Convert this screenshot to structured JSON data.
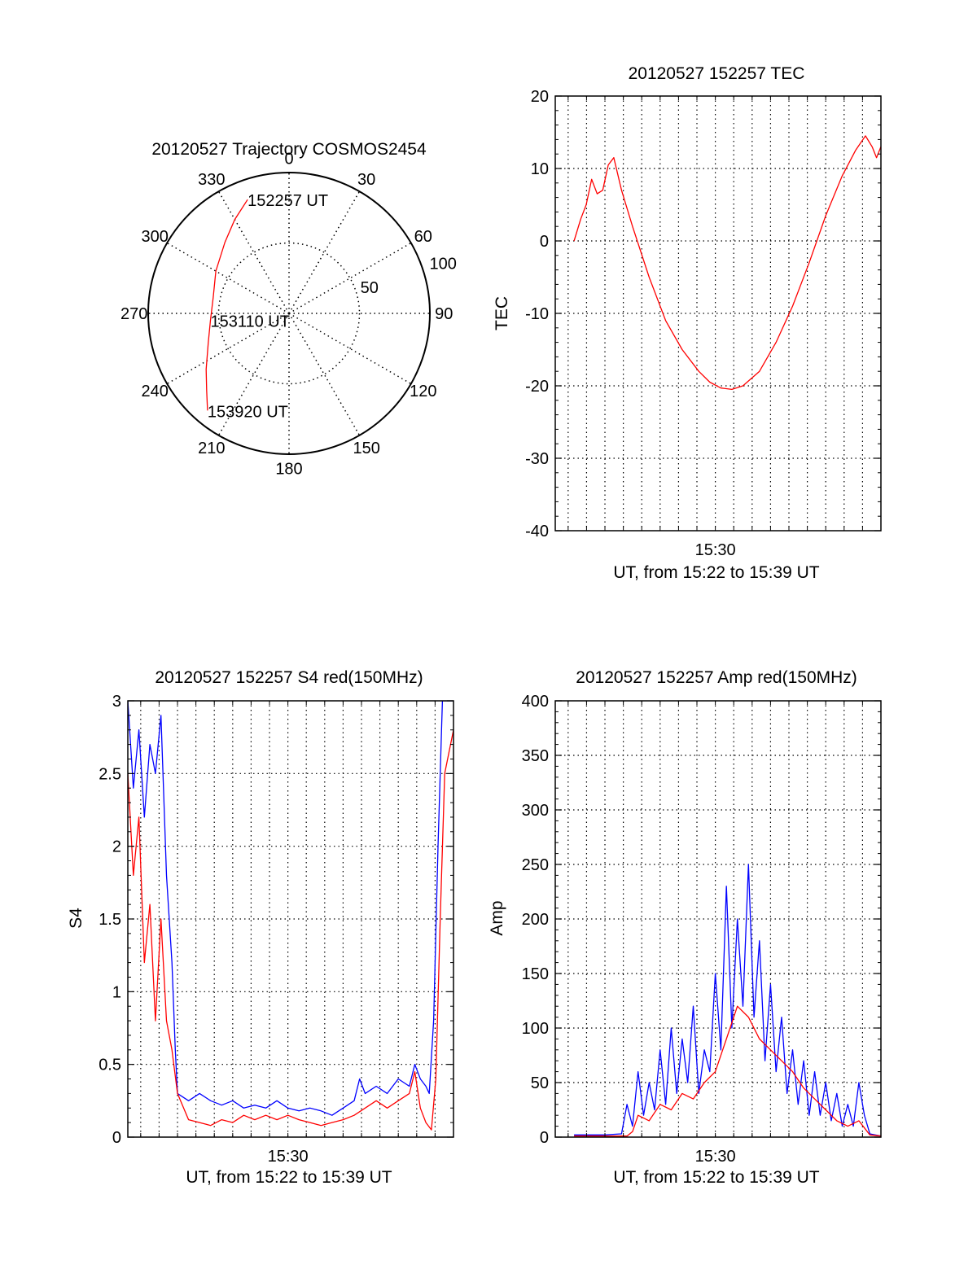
{
  "colors": {
    "red": "#ff0000",
    "blue": "#0000ff",
    "axis": "#000000",
    "grid": "#000000",
    "background": "#ffffff"
  },
  "chart_data": [
    {
      "id": "trajectory",
      "type": "polar",
      "title": "20120527 Trajectory COSMOS2454",
      "radial_max": 100,
      "radial_ticks": [
        50,
        100
      ],
      "radial_tick_labels": [
        "50",
        "100"
      ],
      "azimuth_ticks": [
        0,
        30,
        60,
        90,
        120,
        150,
        180,
        210,
        240,
        270,
        300,
        330
      ],
      "azimuth_tick_labels": [
        "0",
        "30",
        "60",
        "90",
        "120",
        "150",
        "180",
        "210",
        "240",
        "270",
        "300",
        "330"
      ],
      "grid": true,
      "series": [
        {
          "color": "red",
          "points": [
            {
              "az": 340,
              "r": 86
            },
            {
              "az": 330,
              "r": 77
            },
            {
              "az": 318,
              "r": 68
            },
            {
              "az": 300,
              "r": 60
            },
            {
              "az": 282,
              "r": 55
            },
            {
              "az": 265,
              "r": 56
            },
            {
              "az": 250,
              "r": 61
            },
            {
              "az": 236,
              "r": 71
            },
            {
              "az": 227,
              "r": 80
            },
            {
              "az": 220,
              "r": 90
            }
          ]
        }
      ],
      "annotations": [
        {
          "text": "152257 UT",
          "az": 340,
          "r": 86
        },
        {
          "text": "153110 UT",
          "az": 265,
          "r": 56
        },
        {
          "text": "153920 UT",
          "az": 220,
          "r": 90
        }
      ]
    },
    {
      "id": "tec",
      "type": "line",
      "title": "20120527 152257 TEC",
      "xlabel": "UT, from 15:22 to 15:39 UT",
      "ylabel": "TEC",
      "xlim": [
        15.355,
        15.65
      ],
      "ylim": [
        -40,
        20
      ],
      "yticks": [
        20,
        10,
        0,
        -10,
        -20,
        -30,
        -40
      ],
      "ytick_labels": [
        "20",
        "10",
        "0",
        "-10",
        "-20",
        "-30",
        "-40"
      ],
      "xticks": [
        15.5
      ],
      "xtick_labels": [
        "15:30"
      ],
      "xgrid_minutes": [
        22,
        23,
        24,
        25,
        26,
        27,
        28,
        29,
        30,
        31,
        32,
        33,
        34,
        35,
        36,
        37,
        38
      ],
      "grid": true,
      "series": [
        {
          "color": "red",
          "points": [
            [
              15.372,
              0
            ],
            [
              15.378,
              3
            ],
            [
              15.383,
              5
            ],
            [
              15.388,
              8.5
            ],
            [
              15.393,
              6.5
            ],
            [
              15.398,
              7
            ],
            [
              15.403,
              10.5
            ],
            [
              15.408,
              11.5
            ],
            [
              15.415,
              7
            ],
            [
              15.425,
              2
            ],
            [
              15.44,
              -5
            ],
            [
              15.455,
              -11
            ],
            [
              15.47,
              -15
            ],
            [
              15.485,
              -18
            ],
            [
              15.495,
              -19.5
            ],
            [
              15.505,
              -20.3
            ],
            [
              15.515,
              -20.5
            ],
            [
              15.525,
              -20
            ],
            [
              15.54,
              -18
            ],
            [
              15.555,
              -14
            ],
            [
              15.57,
              -9
            ],
            [
              15.585,
              -3
            ],
            [
              15.6,
              3.5
            ],
            [
              15.615,
              9
            ],
            [
              15.627,
              12.5
            ],
            [
              15.636,
              14.5
            ],
            [
              15.642,
              13
            ],
            [
              15.646,
              11.5
            ],
            [
              15.65,
              13
            ]
          ]
        }
      ]
    },
    {
      "id": "s4",
      "type": "line",
      "title": "20120527 152257 S4 red(150MHz)",
      "xlabel": "UT, from 15:22 to 15:39 UT",
      "ylabel": "S4",
      "xlim": [
        15.355,
        15.65
      ],
      "ylim": [
        0,
        3
      ],
      "yticks": [
        3,
        2.5,
        2,
        1.5,
        1,
        0.5,
        0
      ],
      "ytick_labels": [
        "3",
        "2.5",
        "2",
        "1.5",
        "1",
        "0.5",
        "0"
      ],
      "xticks": [
        15.5
      ],
      "xtick_labels": [
        "15:30"
      ],
      "xgrid_minutes": [
        22,
        23,
        24,
        25,
        26,
        27,
        28,
        29,
        30,
        31,
        32,
        33,
        34,
        35,
        36,
        37,
        38
      ],
      "grid": true,
      "series": [
        {
          "color": "blue",
          "points": [
            [
              15.355,
              3
            ],
            [
              15.36,
              2.4
            ],
            [
              15.365,
              2.8
            ],
            [
              15.37,
              2.2
            ],
            [
              15.375,
              2.7
            ],
            [
              15.38,
              2.5
            ],
            [
              15.385,
              2.9
            ],
            [
              15.39,
              1.8
            ],
            [
              15.395,
              1.2
            ],
            [
              15.398,
              0.6
            ],
            [
              15.4,
              0.3
            ],
            [
              15.41,
              0.25
            ],
            [
              15.42,
              0.3
            ],
            [
              15.43,
              0.25
            ],
            [
              15.44,
              0.22
            ],
            [
              15.45,
              0.25
            ],
            [
              15.46,
              0.2
            ],
            [
              15.47,
              0.22
            ],
            [
              15.48,
              0.2
            ],
            [
              15.49,
              0.25
            ],
            [
              15.5,
              0.2
            ],
            [
              15.51,
              0.18
            ],
            [
              15.52,
              0.2
            ],
            [
              15.53,
              0.18
            ],
            [
              15.54,
              0.15
            ],
            [
              15.55,
              0.2
            ],
            [
              15.56,
              0.25
            ],
            [
              15.565,
              0.4
            ],
            [
              15.57,
              0.3
            ],
            [
              15.58,
              0.35
            ],
            [
              15.59,
              0.3
            ],
            [
              15.6,
              0.4
            ],
            [
              15.61,
              0.35
            ],
            [
              15.615,
              0.5
            ],
            [
              15.62,
              0.4
            ],
            [
              15.625,
              0.35
            ],
            [
              15.628,
              0.3
            ],
            [
              15.632,
              0.8
            ],
            [
              15.636,
              2
            ],
            [
              15.64,
              3
            ],
            [
              15.65,
              3
            ]
          ]
        },
        {
          "color": "red",
          "points": [
            [
              15.355,
              2.5
            ],
            [
              15.36,
              1.8
            ],
            [
              15.365,
              2.2
            ],
            [
              15.37,
              1.2
            ],
            [
              15.375,
              1.6
            ],
            [
              15.38,
              0.8
            ],
            [
              15.385,
              1.5
            ],
            [
              15.39,
              0.8
            ],
            [
              15.395,
              0.6
            ],
            [
              15.4,
              0.3
            ],
            [
              15.41,
              0.12
            ],
            [
              15.42,
              0.1
            ],
            [
              15.43,
              0.08
            ],
            [
              15.44,
              0.12
            ],
            [
              15.45,
              0.1
            ],
            [
              15.46,
              0.15
            ],
            [
              15.47,
              0.12
            ],
            [
              15.48,
              0.15
            ],
            [
              15.49,
              0.12
            ],
            [
              15.5,
              0.15
            ],
            [
              15.51,
              0.12
            ],
            [
              15.52,
              0.1
            ],
            [
              15.53,
              0.08
            ],
            [
              15.54,
              0.1
            ],
            [
              15.55,
              0.12
            ],
            [
              15.56,
              0.15
            ],
            [
              15.57,
              0.2
            ],
            [
              15.58,
              0.25
            ],
            [
              15.59,
              0.2
            ],
            [
              15.6,
              0.25
            ],
            [
              15.61,
              0.3
            ],
            [
              15.615,
              0.45
            ],
            [
              15.62,
              0.2
            ],
            [
              15.625,
              0.1
            ],
            [
              15.63,
              0.05
            ],
            [
              15.634,
              0.4
            ],
            [
              15.638,
              1.5
            ],
            [
              15.642,
              2.5
            ],
            [
              15.65,
              2.8
            ]
          ]
        }
      ]
    },
    {
      "id": "amp",
      "type": "line",
      "title": "20120527 152257 Amp red(150MHz)",
      "xlabel": "UT, from 15:22 to 15:39 UT",
      "ylabel": "Amp",
      "xlim": [
        15.355,
        15.65
      ],
      "ylim": [
        0,
        400
      ],
      "yticks": [
        400,
        350,
        300,
        250,
        200,
        150,
        100,
        50,
        0
      ],
      "ytick_labels": [
        "400",
        "350",
        "300",
        "250",
        "200",
        "150",
        "100",
        "50",
        "0"
      ],
      "xticks": [
        15.5
      ],
      "xtick_labels": [
        "15:30"
      ],
      "xgrid_minutes": [
        22,
        23,
        24,
        25,
        26,
        27,
        28,
        29,
        30,
        31,
        32,
        33,
        34,
        35,
        36,
        37,
        38
      ],
      "grid": true,
      "series": [
        {
          "color": "blue",
          "points": [
            [
              15.372,
              2
            ],
            [
              15.4,
              2
            ],
            [
              15.415,
              3
            ],
            [
              15.42,
              30
            ],
            [
              15.425,
              10
            ],
            [
              15.43,
              60
            ],
            [
              15.435,
              20
            ],
            [
              15.44,
              50
            ],
            [
              15.445,
              25
            ],
            [
              15.45,
              80
            ],
            [
              15.455,
              30
            ],
            [
              15.46,
              100
            ],
            [
              15.465,
              40
            ],
            [
              15.47,
              90
            ],
            [
              15.475,
              50
            ],
            [
              15.48,
              120
            ],
            [
              15.485,
              40
            ],
            [
              15.49,
              80
            ],
            [
              15.495,
              60
            ],
            [
              15.5,
              150
            ],
            [
              15.505,
              80
            ],
            [
              15.51,
              230
            ],
            [
              15.515,
              100
            ],
            [
              15.52,
              200
            ],
            [
              15.525,
              120
            ],
            [
              15.53,
              250
            ],
            [
              15.535,
              110
            ],
            [
              15.54,
              180
            ],
            [
              15.545,
              70
            ],
            [
              15.55,
              140
            ],
            [
              15.555,
              60
            ],
            [
              15.56,
              110
            ],
            [
              15.565,
              40
            ],
            [
              15.57,
              80
            ],
            [
              15.575,
              30
            ],
            [
              15.58,
              70
            ],
            [
              15.585,
              20
            ],
            [
              15.59,
              60
            ],
            [
              15.595,
              20
            ],
            [
              15.6,
              50
            ],
            [
              15.605,
              15
            ],
            [
              15.61,
              40
            ],
            [
              15.615,
              10
            ],
            [
              15.62,
              30
            ],
            [
              15.625,
              10
            ],
            [
              15.63,
              50
            ],
            [
              15.635,
              20
            ],
            [
              15.64,
              3
            ],
            [
              15.65,
              1
            ]
          ]
        },
        {
          "color": "red",
          "points": [
            [
              15.372,
              1
            ],
            [
              15.42,
              1
            ],
            [
              15.425,
              5
            ],
            [
              15.43,
              20
            ],
            [
              15.44,
              15
            ],
            [
              15.45,
              30
            ],
            [
              15.46,
              25
            ],
            [
              15.47,
              40
            ],
            [
              15.48,
              35
            ],
            [
              15.49,
              50
            ],
            [
              15.5,
              60
            ],
            [
              15.51,
              90
            ],
            [
              15.52,
              120
            ],
            [
              15.53,
              110
            ],
            [
              15.54,
              90
            ],
            [
              15.55,
              80
            ],
            [
              15.56,
              70
            ],
            [
              15.57,
              60
            ],
            [
              15.58,
              45
            ],
            [
              15.59,
              35
            ],
            [
              15.6,
              25
            ],
            [
              15.61,
              15
            ],
            [
              15.62,
              10
            ],
            [
              15.63,
              15
            ],
            [
              15.64,
              2
            ],
            [
              15.65,
              1
            ]
          ]
        }
      ]
    }
  ]
}
